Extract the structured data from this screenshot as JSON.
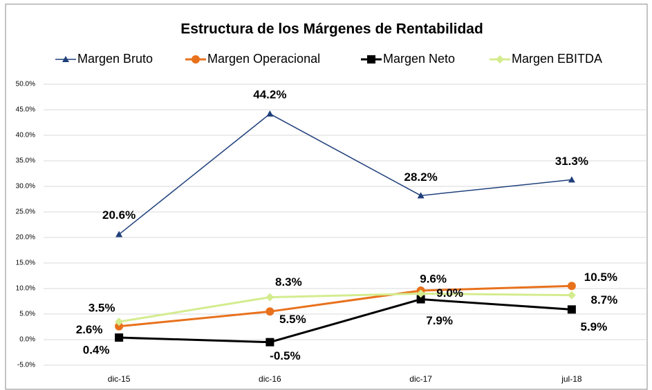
{
  "chart_data": {
    "type": "line",
    "title": "Estructura de los Márgenes de Rentabilidad",
    "categories": [
      "dic-15",
      "dic-16",
      "dic-17",
      "jul-18"
    ],
    "series": [
      {
        "name": "Margen Bruto",
        "color": "#1f3f7a",
        "marker": "triangle",
        "values": [
          20.6,
          44.2,
          28.2,
          31.3
        ],
        "value_labels": [
          "20.6%",
          "44.2%",
          "28.2%",
          "31.3%"
        ]
      },
      {
        "name": "Margen Operacional",
        "color": "#e8711c",
        "marker": "circle",
        "values": [
          2.6,
          5.5,
          9.6,
          10.5
        ],
        "value_labels": [
          "2.6%",
          "5.5%",
          "9.6%",
          "10.5%"
        ]
      },
      {
        "name": "Margen Neto",
        "color": "#000000",
        "marker": "square",
        "values": [
          0.4,
          -0.5,
          7.9,
          5.9
        ],
        "value_labels": [
          "0.4%",
          "-0.5%",
          "7.9%",
          "5.9%"
        ]
      },
      {
        "name": "Margen EBITDA",
        "color": "#d4ec8e",
        "marker": "diamond",
        "values": [
          3.5,
          8.3,
          9.0,
          8.7
        ],
        "value_labels": [
          "3.5%",
          "8.3%",
          "9.0%",
          "8.7%"
        ]
      }
    ],
    "ylim": [
      -5,
      50
    ],
    "yticks": [
      {
        "value": -5,
        "label": "-5.0%"
      },
      {
        "value": 0,
        "label": "0.0%"
      },
      {
        "value": 5,
        "label": "5.0%"
      },
      {
        "value": 10,
        "label": "10.0%"
      },
      {
        "value": 15,
        "label": "15.0%"
      },
      {
        "value": 20,
        "label": "20.0%"
      },
      {
        "value": 25,
        "label": "25.0%"
      },
      {
        "value": 30,
        "label": "30.0%"
      },
      {
        "value": 35,
        "label": "35.0%"
      },
      {
        "value": 40,
        "label": "40.0%"
      },
      {
        "value": 45,
        "label": "45.0%"
      },
      {
        "value": 50,
        "label": "50.0%"
      }
    ],
    "grid": true,
    "legend": "top"
  }
}
